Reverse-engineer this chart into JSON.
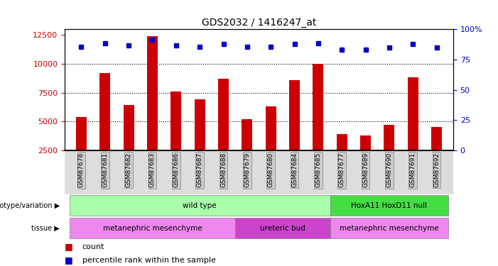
{
  "title": "GDS2032 / 1416247_at",
  "samples": [
    "GSM87678",
    "GSM87681",
    "GSM87682",
    "GSM87683",
    "GSM87686",
    "GSM87687",
    "GSM87688",
    "GSM87679",
    "GSM87680",
    "GSM87684",
    "GSM87685",
    "GSM87677",
    "GSM87689",
    "GSM87690",
    "GSM87691",
    "GSM87692"
  ],
  "counts": [
    5400,
    9200,
    6400,
    12400,
    7600,
    6900,
    8700,
    5200,
    6300,
    8600,
    10000,
    3900,
    3800,
    4700,
    8800,
    4500
  ],
  "percentile_y_values": [
    11500,
    11800,
    11600,
    12100,
    11600,
    11500,
    11700,
    11500,
    11500,
    11700,
    11800,
    11200,
    11200,
    11400,
    11700,
    11400
  ],
  "bar_color": "#cc0000",
  "dot_color": "#0000cc",
  "ylim_left": [
    2500,
    13000
  ],
  "yticks_left": [
    2500,
    5000,
    7500,
    10000,
    12500
  ],
  "ytick_labels_left": [
    "2500",
    "5000",
    "7500",
    "10000",
    "12500"
  ],
  "ylim_right": [
    0,
    100
  ],
  "yticks_right": [
    0,
    25,
    50,
    75,
    100
  ],
  "ytick_labels_right": [
    "0",
    "25",
    "50",
    "75",
    "100%"
  ],
  "genotype_groups": [
    {
      "label": "wild type",
      "start": 0,
      "end": 11,
      "color": "#aaffaa"
    },
    {
      "label": "HoxA11 HoxD11 null",
      "start": 11,
      "end": 16,
      "color": "#44dd44"
    }
  ],
  "tissue_groups": [
    {
      "label": "metanephric mesenchyme",
      "start": 0,
      "end": 7,
      "color": "#ee88ee"
    },
    {
      "label": "ureteric bud",
      "start": 7,
      "end": 11,
      "color": "#cc44cc"
    },
    {
      "label": "metanephric mesenchyme",
      "start": 11,
      "end": 16,
      "color": "#ee88ee"
    }
  ],
  "legend_count_color": "#cc0000",
  "legend_percentile_color": "#0000cc",
  "plot_bg_color": "#ffffff",
  "grid_yticks": [
    5000,
    7500,
    10000
  ],
  "tick_label_bg": "#cccccc"
}
